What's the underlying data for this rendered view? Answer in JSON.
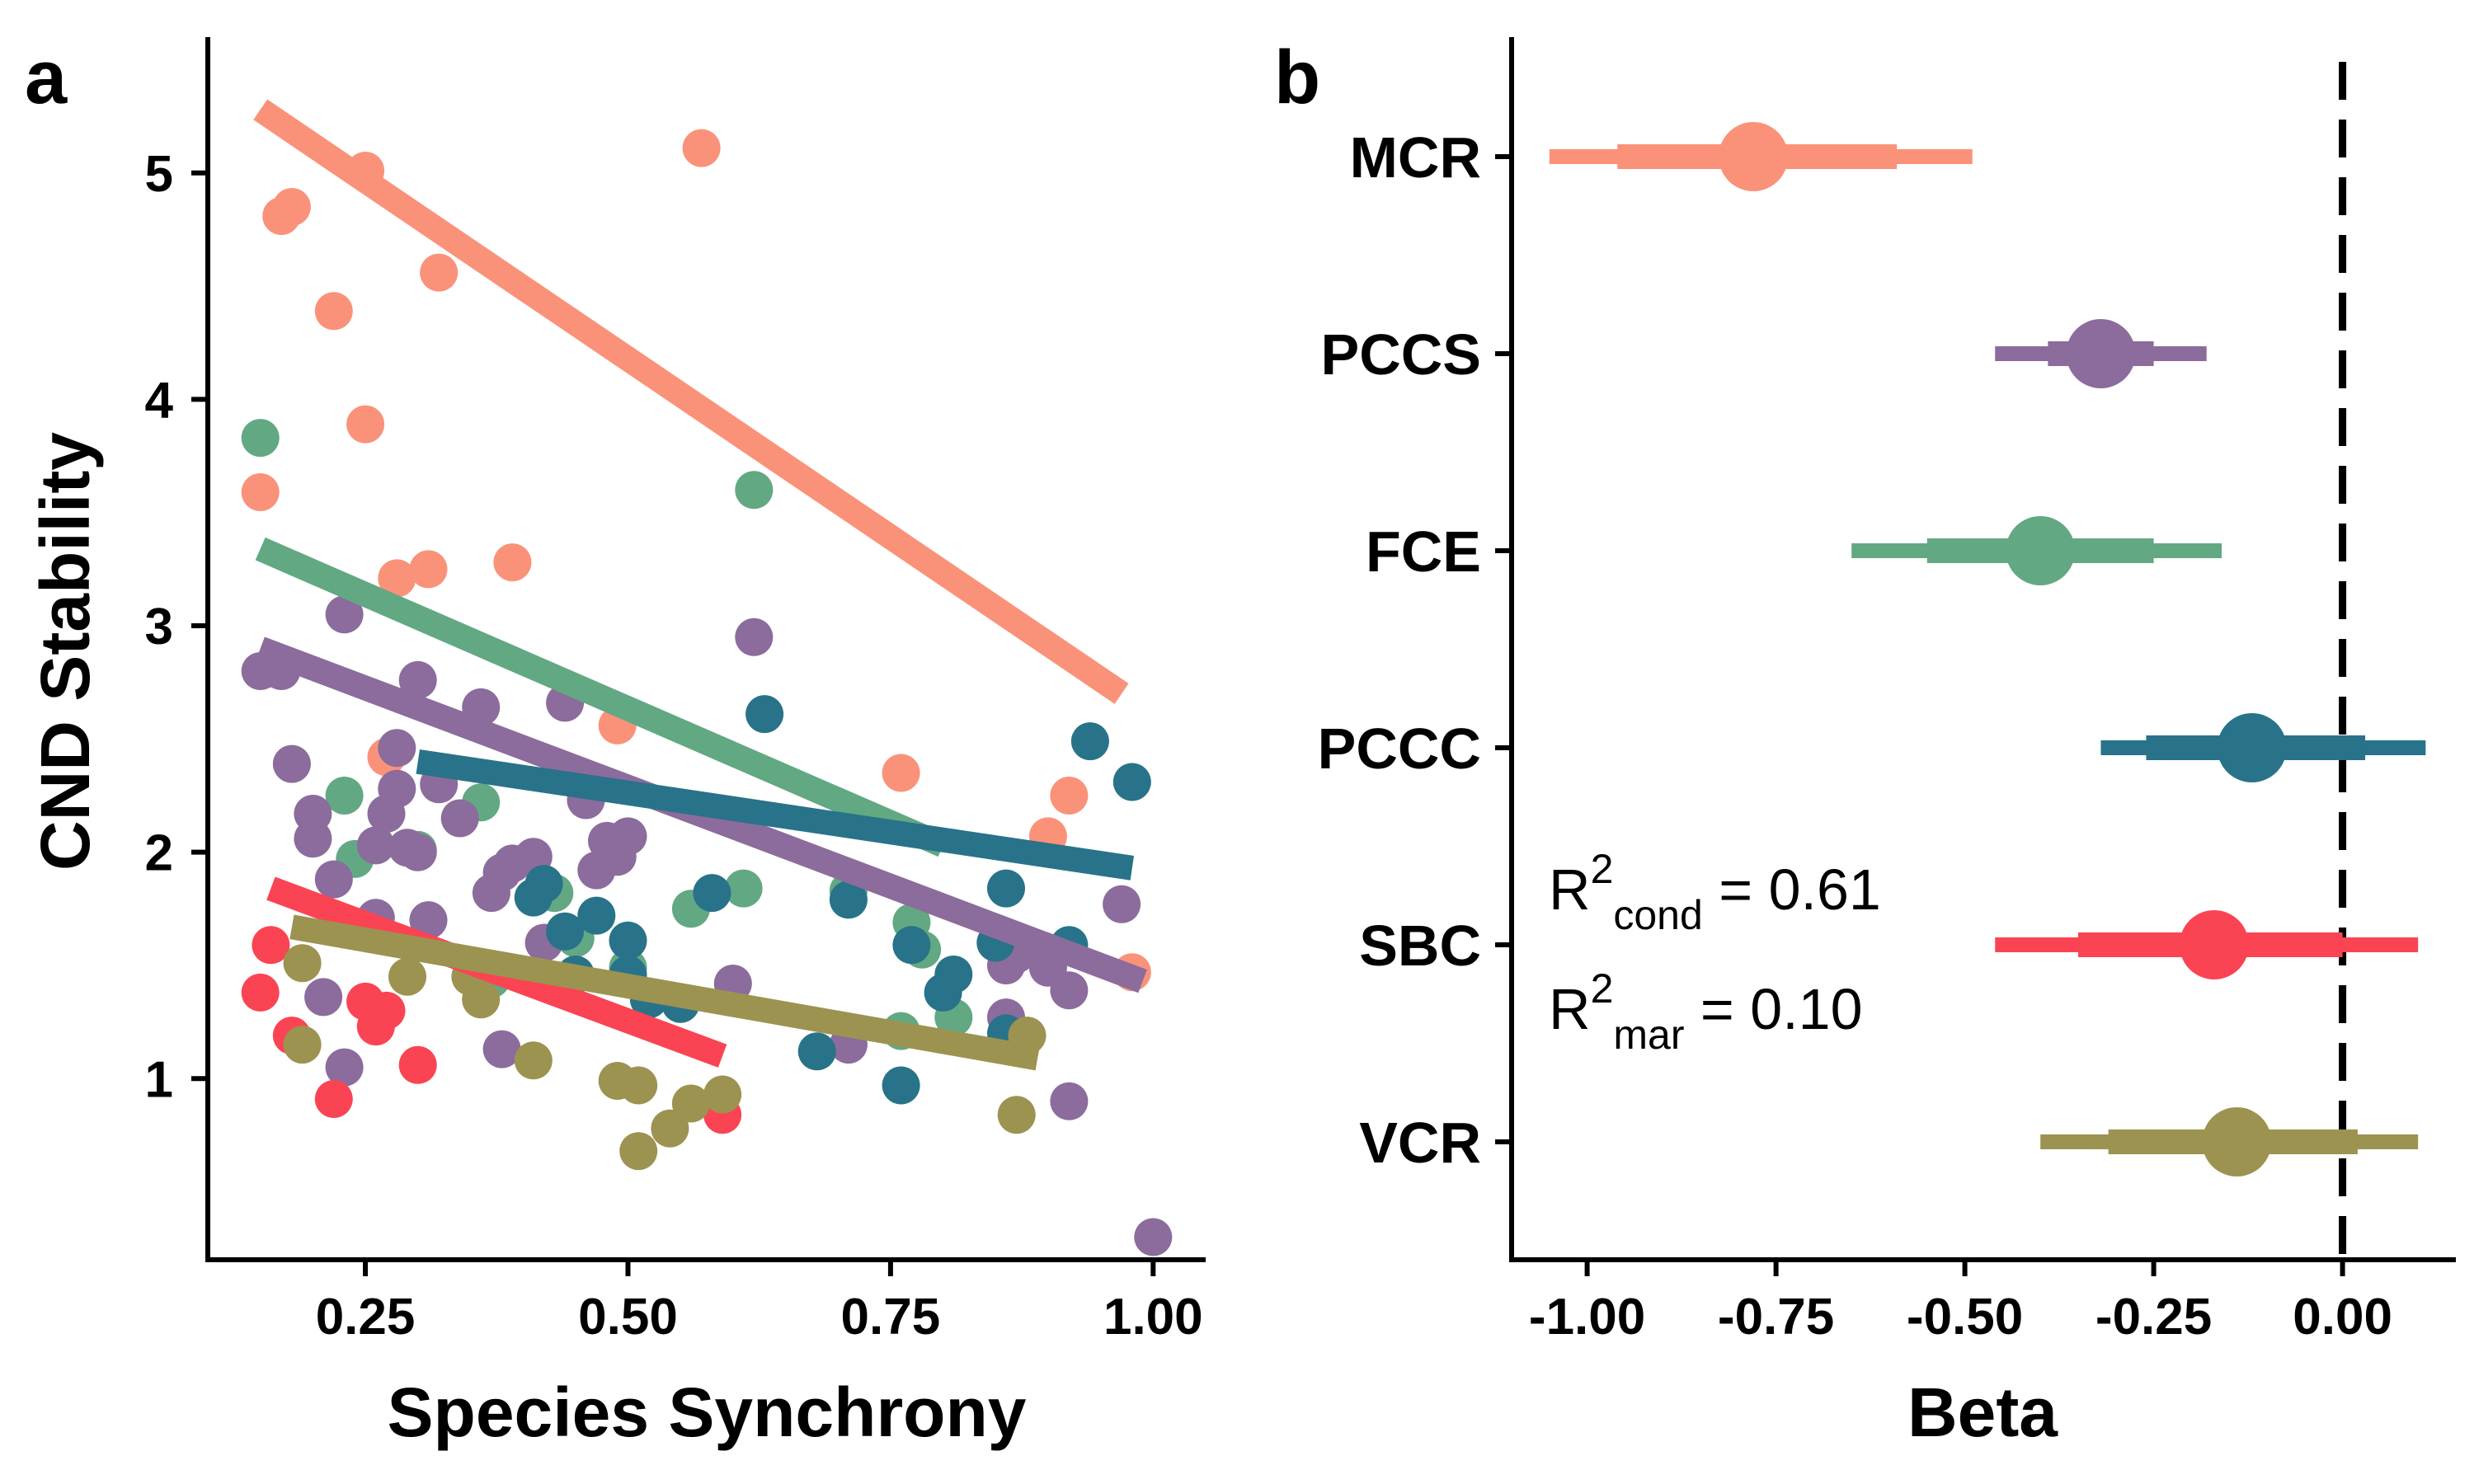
{
  "chart_data": [
    {
      "panel": "a",
      "type": "scatter",
      "xlabel": "Species Synchrony",
      "ylabel": "CND Stability",
      "xlim": [
        0.1,
        1.05
      ],
      "ylim": [
        0.2,
        5.6
      ],
      "xticks": [
        0.25,
        0.5,
        0.75,
        1.0
      ],
      "xtick_labels": [
        "0.25",
        "0.50",
        "0.75",
        "1.00"
      ],
      "yticks": [
        1,
        2,
        3,
        4,
        5
      ],
      "ytick_labels": [
        "1",
        "2",
        "3",
        "4",
        "5"
      ],
      "grid": false,
      "legend": "none",
      "series": [
        {
          "color": "#FA9279",
          "points": [
            [
              0.15,
              3.59
            ],
            [
              0.16,
              2.81
            ],
            [
              0.17,
              4.81
            ],
            [
              0.18,
              4.85
            ],
            [
              0.22,
              4.39
            ],
            [
              0.25,
              3.89
            ],
            [
              0.25,
              5.01
            ],
            [
              0.27,
              2.42
            ],
            [
              0.28,
              3.21
            ],
            [
              0.31,
              3.25
            ],
            [
              0.32,
              4.56
            ],
            [
              0.39,
              3.28
            ],
            [
              0.49,
              2.56
            ],
            [
              0.57,
              5.11
            ],
            [
              0.76,
              2.35
            ],
            [
              0.9,
              2.07
            ],
            [
              0.92,
              2.25
            ],
            [
              0.98,
              1.47
            ]
          ],
          "fit": [
            [
              0.15,
              5.28
            ],
            [
              0.97,
              2.7
            ]
          ]
        },
        {
          "color": "#62A883",
          "points": [
            [
              0.15,
              3.83
            ],
            [
              0.23,
              2.25
            ],
            [
              0.24,
              1.97
            ],
            [
              0.3,
              2.01
            ],
            [
              0.36,
              2.22
            ],
            [
              0.37,
              1.44
            ],
            [
              0.43,
              1.82
            ],
            [
              0.45,
              1.62
            ],
            [
              0.5,
              1.49
            ],
            [
              0.56,
              1.75
            ],
            [
              0.61,
              1.84
            ],
            [
              0.62,
              3.6
            ],
            [
              0.71,
              1.83
            ],
            [
              0.76,
              1.21
            ],
            [
              0.77,
              1.69
            ],
            [
              0.78,
              1.57
            ],
            [
              0.81,
              1.27
            ]
          ],
          "fit": [
            [
              0.15,
              3.34
            ],
            [
              0.8,
              2.03
            ]
          ]
        },
        {
          "color": "#8B6C9C",
          "points": [
            [
              0.15,
              2.8
            ],
            [
              0.17,
              2.8
            ],
            [
              0.18,
              2.39
            ],
            [
              0.2,
              2.17
            ],
            [
              0.2,
              2.06
            ],
            [
              0.21,
              1.36
            ],
            [
              0.22,
              1.88
            ],
            [
              0.23,
              1.05
            ],
            [
              0.23,
              3.05
            ],
            [
              0.26,
              1.71
            ],
            [
              0.26,
              2.03
            ],
            [
              0.27,
              2.17
            ],
            [
              0.28,
              2.28
            ],
            [
              0.28,
              2.46
            ],
            [
              0.29,
              2.02
            ],
            [
              0.3,
              2.76
            ],
            [
              0.3,
              2.0
            ],
            [
              0.31,
              1.7
            ],
            [
              0.32,
              2.3
            ],
            [
              0.34,
              2.15
            ],
            [
              0.36,
              2.64
            ],
            [
              0.37,
              1.82
            ],
            [
              0.38,
              1.91
            ],
            [
              0.39,
              1.95
            ],
            [
              0.38,
              1.13
            ],
            [
              0.41,
              1.98
            ],
            [
              0.42,
              1.6
            ],
            [
              0.44,
              2.66
            ],
            [
              0.46,
              2.23
            ],
            [
              0.47,
              1.92
            ],
            [
              0.48,
              2.05
            ],
            [
              0.49,
              1.98
            ],
            [
              0.5,
              2.07
            ],
            [
              0.6,
              1.42
            ],
            [
              0.62,
              2.95
            ],
            [
              0.71,
              1.15
            ],
            [
              0.86,
              1.27
            ],
            [
              0.86,
              1.5
            ],
            [
              0.87,
              1.55
            ],
            [
              0.9,
              1.49
            ],
            [
              0.92,
              0.9
            ],
            [
              0.92,
              1.39
            ],
            [
              0.97,
              1.77
            ],
            [
              1.0,
              0.3
            ]
          ],
          "fit": [
            [
              0.15,
              2.9
            ],
            [
              0.99,
              1.43
            ]
          ]
        },
        {
          "color": "#287389",
          "points": [
            [
              0.41,
              1.8
            ],
            [
              0.42,
              1.86
            ],
            [
              0.44,
              1.65
            ],
            [
              0.45,
              1.46
            ],
            [
              0.47,
              1.72
            ],
            [
              0.5,
              1.61
            ],
            [
              0.5,
              1.46
            ],
            [
              0.52,
              1.35
            ],
            [
              0.55,
              1.33
            ],
            [
              0.58,
              1.82
            ],
            [
              0.63,
              2.61
            ],
            [
              0.68,
              1.12
            ],
            [
              0.71,
              1.79
            ],
            [
              0.76,
              0.97
            ],
            [
              0.77,
              1.59
            ],
            [
              0.8,
              1.38
            ],
            [
              0.81,
              1.46
            ],
            [
              0.85,
              1.6
            ],
            [
              0.86,
              1.84
            ],
            [
              0.86,
              1.2
            ],
            [
              0.92,
              1.59
            ],
            [
              0.94,
              2.49
            ],
            [
              0.98,
              2.31
            ]
          ],
          "fit": [
            [
              0.3,
              2.4
            ],
            [
              0.98,
              1.93
            ]
          ]
        },
        {
          "color": "#FA4453",
          "points": [
            [
              0.15,
              1.38
            ],
            [
              0.16,
              1.59
            ],
            [
              0.18,
              1.19
            ],
            [
              0.22,
              0.91
            ],
            [
              0.25,
              1.34
            ],
            [
              0.26,
              1.23
            ],
            [
              0.27,
              1.3
            ],
            [
              0.3,
              1.06
            ],
            [
              0.59,
              0.84
            ]
          ],
          "fit": [
            [
              0.16,
              1.84
            ],
            [
              0.59,
              1.1
            ]
          ]
        },
        {
          "color": "#9C9351",
          "points": [
            [
              0.19,
              1.15
            ],
            [
              0.19,
              1.51
            ],
            [
              0.29,
              1.45
            ],
            [
              0.35,
              1.45
            ],
            [
              0.36,
              1.35
            ],
            [
              0.41,
              1.08
            ],
            [
              0.49,
              0.99
            ],
            [
              0.51,
              0.68
            ],
            [
              0.51,
              0.97
            ],
            [
              0.54,
              0.78
            ],
            [
              0.56,
              0.89
            ],
            [
              0.59,
              0.93
            ],
            [
              0.87,
              0.84
            ],
            [
              0.88,
              1.19
            ]
          ],
          "fit": [
            [
              0.18,
              1.67
            ],
            [
              0.89,
              1.09
            ]
          ]
        }
      ]
    },
    {
      "panel": "b",
      "type": "scatter",
      "xlabel": "Beta",
      "xlim": [
        -1.1,
        0.15
      ],
      "xticks": [
        -1.0,
        -0.75,
        -0.5,
        -0.25,
        0.0
      ],
      "xtick_labels": [
        "-1.00",
        "-0.75",
        "-0.50",
        "-0.25",
        "0.00"
      ],
      "reference_line_x": 0.0,
      "grid": false,
      "categories": [
        "MCR",
        "PCCS",
        "FCE",
        "PCCC",
        "SBC",
        "VCR"
      ],
      "estimates": [
        {
          "label": "MCR",
          "color": "#FA9279",
          "estimate": -0.78,
          "inner": [
            -0.96,
            -0.59
          ],
          "outer": [
            -1.05,
            -0.49
          ]
        },
        {
          "label": "PCCS",
          "color": "#8B6C9C",
          "estimate": -0.32,
          "inner": [
            -0.39,
            -0.25
          ],
          "outer": [
            -0.46,
            -0.18
          ]
        },
        {
          "label": "FCE",
          "color": "#62A883",
          "estimate": -0.4,
          "inner": [
            -0.55,
            -0.25
          ],
          "outer": [
            -0.65,
            -0.16
          ]
        },
        {
          "label": "PCCC",
          "color": "#287389",
          "estimate": -0.12,
          "inner": [
            -0.26,
            0.03
          ],
          "outer": [
            -0.32,
            0.11
          ]
        },
        {
          "label": "SBC",
          "color": "#FA4453",
          "estimate": -0.17,
          "inner": [
            -0.35,
            0.0
          ],
          "outer": [
            -0.46,
            0.1
          ]
        },
        {
          "label": "VCR",
          "color": "#9C9351",
          "estimate": -0.14,
          "inner": [
            -0.31,
            0.02
          ],
          "outer": [
            -0.4,
            0.1
          ]
        }
      ],
      "annotations": {
        "r2_cond": {
          "base": "R",
          "sup": "2",
          "sub": "cond",
          "text": " = 0.61"
        },
        "r2_mar": {
          "base": "R",
          "sup": "2",
          "sub": "mar",
          "text": " = 0.10"
        }
      }
    }
  ],
  "panel_letters": {
    "a": "a",
    "b": "b"
  }
}
